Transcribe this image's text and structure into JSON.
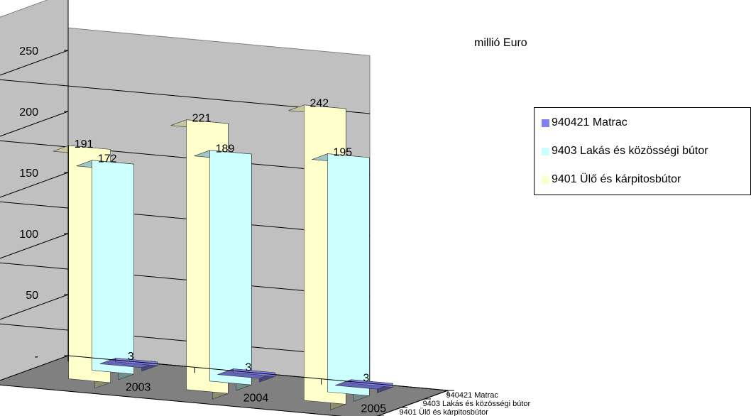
{
  "chart_data": {
    "type": "bar",
    "categories": [
      "2003",
      "2004",
      "2005"
    ],
    "series": [
      {
        "name": "940421 Matrac",
        "values": [
          3,
          3,
          3
        ],
        "color": "#8080f0"
      },
      {
        "name": "9403 Lakás és közösségi bútor",
        "values": [
          172,
          189,
          195
        ],
        "color": "#ccffff"
      },
      {
        "name": "9401 Ülő és kárpitosbútor",
        "values": [
          191,
          221,
          242
        ],
        "color": "#ffffcc"
      }
    ],
    "depth_labels": [
      "9401 Ülő és kárpitosbútor",
      "9403 Lakás és közösségi bútor",
      "940421 Matrac"
    ],
    "y_ticks": [
      "-",
      "50",
      "100",
      "150",
      "200",
      "250"
    ],
    "ylim": [
      0,
      250
    ],
    "unit_label": "millió Euro",
    "legend_position": "right",
    "grid": true,
    "three_d": true
  }
}
